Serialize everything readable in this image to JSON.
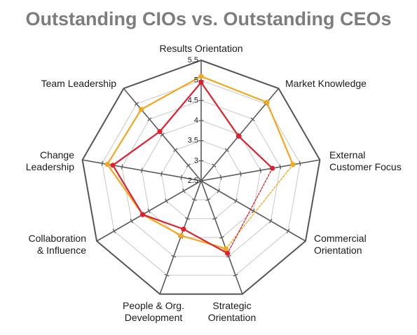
{
  "chart_data": {
    "type": "radar",
    "title": "Outstanding CIOs vs. Outstanding CEOs",
    "axes": [
      [
        "Results Orientation"
      ],
      [
        "Market Knowledge"
      ],
      [
        "External",
        "Customer Focus"
      ],
      [
        "Commercial",
        "Orientation"
      ],
      [
        "Strategic",
        "Orientation"
      ],
      [
        "People & Org.",
        "Development"
      ],
      [
        "Collaboration",
        "& Influence"
      ],
      [
        "Change",
        "Leadership"
      ],
      [
        "Team Leadership"
      ]
    ],
    "rlim": [
      2.5,
      5.5
    ],
    "ticks": [
      "2.5",
      "3",
      "3.5",
      "4",
      "4.5",
      "5",
      "5.5"
    ],
    "grid": true,
    "series": [
      {
        "color": "#f2a81d",
        "values": [
          5.1,
          5.05,
          4.82,
          null,
          4.3,
          3.95,
          4.18,
          4.87,
          4.82
        ],
        "segment_styles": [
          "solid",
          "solid",
          "dashed",
          "dashed",
          "solid",
          "solid",
          "solid",
          "solid",
          "solid"
        ]
      },
      {
        "color": "#e0202e",
        "values": [
          4.95,
          3.95,
          4.3,
          null,
          4.42,
          3.78,
          4.18,
          4.73,
          4.1
        ],
        "segment_styles": [
          "solid",
          "solid",
          "dashed",
          "dashed",
          "solid",
          "solid",
          "solid",
          "solid",
          "solid"
        ]
      }
    ]
  }
}
